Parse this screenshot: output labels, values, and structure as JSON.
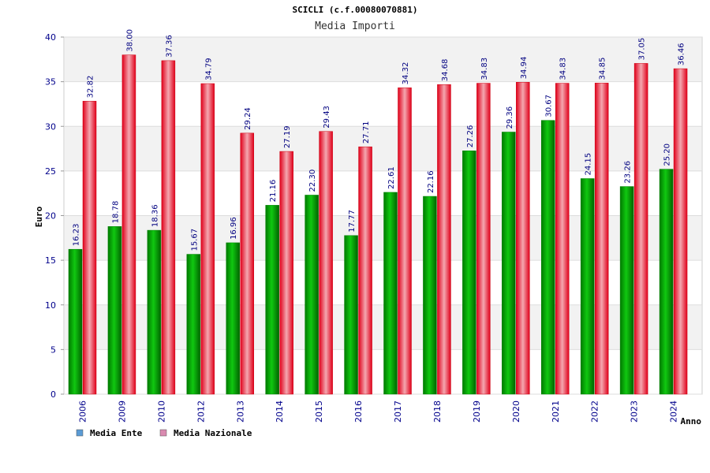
{
  "chart_data": {
    "type": "bar",
    "title": "SCICLI (c.f.00080070881)",
    "subtitle": "Media Importi",
    "xlabel": "Anno",
    "ylabel": "Euro",
    "ylim": [
      0,
      40
    ],
    "yticks": [
      0,
      5,
      10,
      15,
      20,
      25,
      30,
      35,
      40
    ],
    "grid": true,
    "legend_position": "bottom-left",
    "categories": [
      "2006",
      "2009",
      "2010",
      "2012",
      "2013",
      "2014",
      "2015",
      "2016",
      "2017",
      "2018",
      "2019",
      "2020",
      "2021",
      "2022",
      "2023",
      "2024"
    ],
    "series": [
      {
        "name": "Media Ente",
        "color": "#00a800",
        "legend_color": "#5b9bd5",
        "values": [
          16.23,
          18.78,
          18.36,
          15.67,
          16.96,
          21.16,
          22.3,
          17.77,
          22.61,
          22.16,
          27.26,
          29.36,
          30.67,
          24.15,
          23.26,
          25.2
        ],
        "labels": [
          "16.23",
          "18.78",
          "18.36",
          "15.67",
          "16.96",
          "21.16",
          "22.30",
          "17.77",
          "22.61",
          "22.16",
          "27.26",
          "29.36",
          "30.67",
          "24.15",
          "23.26",
          "25.20"
        ]
      },
      {
        "name": "Media Nazionale",
        "color": "#e8101c",
        "legend_color": "#d98ab0",
        "values": [
          32.82,
          38.0,
          37.36,
          34.79,
          29.24,
          27.19,
          29.43,
          27.71,
          34.32,
          34.68,
          34.83,
          34.94,
          34.83,
          34.85,
          37.05,
          36.46
        ],
        "labels": [
          "32.82",
          "38.00",
          "37.36",
          "34.79",
          "29.24",
          "27.19",
          "29.43",
          "27.71",
          "34.32",
          "34.68",
          "34.83",
          "34.94",
          "34.83",
          "34.85",
          "37.05",
          "36.46"
        ]
      }
    ]
  }
}
